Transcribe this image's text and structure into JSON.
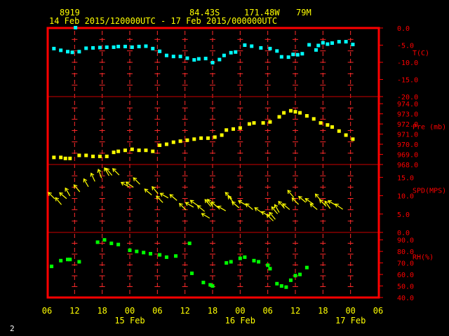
{
  "header": {
    "station": "8919",
    "latitude": "84.43S",
    "longitude": "171.48W",
    "elevation": "79M",
    "date_range": "14 Feb 2015/120000UTC - 17 Feb 2015/000000UTC"
  },
  "page_number": "2",
  "colors": {
    "frame": "#ff0000",
    "panel_line": "#cc0000",
    "tick_text": "#ff0000",
    "axis_text": "#ffff00",
    "temperature": "#00ffff",
    "pressure": "#ffff00",
    "wind": "#ffff00",
    "humidity": "#00ff00"
  },
  "chart_data": {
    "type": "scatter",
    "x_axis": {
      "unit": "hours since 14 Feb 2015 06UTC",
      "range": [
        0,
        72
      ],
      "tick_labels": [
        "06",
        "12",
        "18",
        "00",
        "06",
        "12",
        "18",
        "00",
        "06",
        "12",
        "18",
        "00",
        "06"
      ],
      "date_labels": [
        {
          "label": "15 Feb",
          "hour": 18
        },
        {
          "label": "16 Feb",
          "hour": 42
        },
        {
          "label": "17 Feb",
          "hour": 66
        }
      ]
    },
    "panels": [
      {
        "key": "temperature",
        "label": "T(C)",
        "marker": "square",
        "ylim": [
          -20,
          0
        ],
        "ticks": [
          {
            "v": 0,
            "t": "0.0"
          },
          {
            "v": -5,
            "t": "-5.0"
          },
          {
            "v": -10,
            "t": "-10.0"
          },
          {
            "v": -15,
            "t": "-15.0"
          },
          {
            "v": -20,
            "t": "-20.0"
          }
        ],
        "points": [
          [
            1.5,
            -6.0
          ],
          [
            3,
            -6.5
          ],
          [
            4.5,
            -6.9
          ],
          [
            5.5,
            -7.1
          ],
          [
            6.2,
            0.1
          ],
          [
            7,
            -6.9
          ],
          [
            8.5,
            -5.9
          ],
          [
            10,
            -5.8
          ],
          [
            11.5,
            -5.7
          ],
          [
            13,
            -5.6
          ],
          [
            14.5,
            -5.6
          ],
          [
            15.5,
            -5.4
          ],
          [
            17,
            -5.4
          ],
          [
            18.5,
            -5.6
          ],
          [
            20,
            -5.4
          ],
          [
            21.5,
            -5.3
          ],
          [
            23,
            -6.0
          ],
          [
            24.5,
            -6.8
          ],
          [
            26,
            -8.0
          ],
          [
            27.5,
            -8.3
          ],
          [
            29,
            -8.3
          ],
          [
            30.5,
            -8.8
          ],
          [
            32,
            -9.3
          ],
          [
            33,
            -9.0
          ],
          [
            34.5,
            -8.9
          ],
          [
            36,
            -10.1
          ],
          [
            37.5,
            -9.2
          ],
          [
            38.5,
            -8.0
          ],
          [
            40,
            -7.2
          ],
          [
            41,
            -7.0
          ],
          [
            43,
            -5.0
          ],
          [
            44.5,
            -5.3
          ],
          [
            46.5,
            -5.8
          ],
          [
            48.5,
            -6.0
          ],
          [
            50,
            -6.7
          ],
          [
            51,
            -8.4
          ],
          [
            52.5,
            -8.5
          ],
          [
            53.5,
            -7.7
          ],
          [
            54.5,
            -7.8
          ],
          [
            55.5,
            -7.5
          ],
          [
            57,
            -4.9
          ],
          [
            58.5,
            -6.4
          ],
          [
            59,
            -5.1
          ],
          [
            60,
            -4.3
          ],
          [
            61,
            -4.7
          ],
          [
            62,
            -4.4
          ],
          [
            63.5,
            -4.0
          ],
          [
            65,
            -4.0
          ],
          [
            66.5,
            -4.8
          ]
        ]
      },
      {
        "key": "pressure",
        "label": "Pre (mb)",
        "marker": "square",
        "ylim": [
          968,
          974.7
        ],
        "ticks": [
          {
            "v": 974,
            "t": "974.0"
          },
          {
            "v": 973,
            "t": "973.0"
          },
          {
            "v": 972,
            "t": "972.0"
          },
          {
            "v": 971,
            "t": "971.0"
          },
          {
            "v": 970,
            "t": "970.0"
          },
          {
            "v": 969,
            "t": "969.0"
          },
          {
            "v": 968,
            "t": "968.0"
          }
        ],
        "points": [
          [
            1.5,
            968.7
          ],
          [
            3,
            968.7
          ],
          [
            4,
            968.6
          ],
          [
            5,
            968.6
          ],
          [
            7,
            968.9
          ],
          [
            8.5,
            968.9
          ],
          [
            10,
            968.8
          ],
          [
            11.5,
            968.8
          ],
          [
            13,
            968.8
          ],
          [
            14.5,
            969.2
          ],
          [
            15.5,
            969.3
          ],
          [
            17,
            969.4
          ],
          [
            18.5,
            969.5
          ],
          [
            20,
            969.4
          ],
          [
            21.5,
            969.4
          ],
          [
            23,
            969.3
          ],
          [
            24.5,
            969.9
          ],
          [
            26,
            970.0
          ],
          [
            27.5,
            970.2
          ],
          [
            29,
            970.3
          ],
          [
            30.5,
            970.4
          ],
          [
            32,
            970.5
          ],
          [
            33.5,
            970.6
          ],
          [
            35,
            970.6
          ],
          [
            36.5,
            970.7
          ],
          [
            38,
            970.9
          ],
          [
            39,
            971.4
          ],
          [
            40.5,
            971.5
          ],
          [
            42,
            971.6
          ],
          [
            44,
            972.0
          ],
          [
            45,
            972.1
          ],
          [
            47,
            972.1
          ],
          [
            48.5,
            972.2
          ],
          [
            50.5,
            972.7
          ],
          [
            51.5,
            973.1
          ],
          [
            53,
            973.3
          ],
          [
            54,
            973.2
          ],
          [
            55,
            973.1
          ],
          [
            56.5,
            972.8
          ],
          [
            58,
            972.5
          ],
          [
            59.5,
            972.1
          ],
          [
            61,
            971.9
          ],
          [
            62,
            971.7
          ],
          [
            63.5,
            971.3
          ],
          [
            65,
            970.9
          ],
          [
            66.5,
            970.5
          ]
        ]
      },
      {
        "key": "wind",
        "label": "SPD(MPS)",
        "marker": "arrow",
        "ylim": [
          0,
          18.5
        ],
        "ticks": [
          {
            "v": 15,
            "t": "15.0"
          },
          {
            "v": 10,
            "t": "10.0"
          },
          {
            "v": 5,
            "t": "5.0"
          },
          {
            "v": 0,
            "t": "0.0"
          }
        ],
        "points": [
          [
            1,
            10.0,
            315
          ],
          [
            2.5,
            8.5,
            320
          ],
          [
            3.5,
            10.0,
            310
          ],
          [
            4.5,
            11.0,
            330
          ],
          [
            6.5,
            12.0,
            320
          ],
          [
            8.5,
            13.5,
            330
          ],
          [
            10,
            15.0,
            335
          ],
          [
            11.5,
            16.0,
            340
          ],
          [
            13,
            16.5,
            330
          ],
          [
            13.5,
            16.5,
            320
          ],
          [
            15,
            16.5,
            315
          ],
          [
            17,
            13.0,
            300
          ],
          [
            18,
            13.0,
            305
          ],
          [
            19.5,
            14.0,
            315
          ],
          [
            22,
            11.0,
            310
          ],
          [
            23.5,
            11.5,
            320
          ],
          [
            24.5,
            9.0,
            315
          ],
          [
            25.5,
            10.0,
            300
          ],
          [
            27.5,
            9.5,
            310
          ],
          [
            29.5,
            7.0,
            315
          ],
          [
            31,
            7.5,
            300
          ],
          [
            32,
            8.0,
            305
          ],
          [
            33.5,
            6.5,
            310
          ],
          [
            34.5,
            4.5,
            300
          ],
          [
            35,
            8.0,
            320
          ],
          [
            35.5,
            8.0,
            325
          ],
          [
            36.5,
            7.5,
            310
          ],
          [
            38,
            6.5,
            300
          ],
          [
            39.5,
            10.0,
            315
          ],
          [
            40,
            9.0,
            320
          ],
          [
            41,
            7.5,
            310
          ],
          [
            42.5,
            8.0,
            300
          ],
          [
            44,
            7.0,
            310
          ],
          [
            46,
            6.0,
            305
          ],
          [
            47.5,
            5.0,
            300
          ],
          [
            48.5,
            4.0,
            315
          ],
          [
            49,
            4.5,
            320
          ],
          [
            49.5,
            6.0,
            320
          ],
          [
            50,
            6.5,
            330
          ],
          [
            51,
            7.5,
            320
          ],
          [
            52,
            7.0,
            310
          ],
          [
            53,
            10.5,
            320
          ],
          [
            54,
            8.5,
            315
          ],
          [
            55.5,
            9.0,
            310
          ],
          [
            57,
            8.5,
            305
          ],
          [
            58,
            7.0,
            310
          ],
          [
            59,
            9.5,
            320
          ],
          [
            60,
            8.0,
            315
          ],
          [
            61,
            7.5,
            325
          ],
          [
            62,
            8.0,
            300
          ],
          [
            63.5,
            7.0,
            305
          ]
        ]
      },
      {
        "key": "humidity",
        "label": "RH(%)",
        "marker": "square",
        "ylim": [
          40,
          96.5
        ],
        "ticks": [
          {
            "v": 90,
            "t": "90.0"
          },
          {
            "v": 80,
            "t": "80.0"
          },
          {
            "v": 70,
            "t": "70.0"
          },
          {
            "v": 60,
            "t": "60.0"
          },
          {
            "v": 50,
            "t": "50.0"
          },
          {
            "v": 40,
            "t": "40.0"
          }
        ],
        "points": [
          [
            1,
            67
          ],
          [
            3,
            72
          ],
          [
            4.5,
            73
          ],
          [
            5,
            73
          ],
          [
            7,
            71
          ],
          [
            11,
            88
          ],
          [
            12.5,
            90
          ],
          [
            14,
            87
          ],
          [
            15.5,
            86
          ],
          [
            18,
            81
          ],
          [
            19.5,
            80
          ],
          [
            21,
            79
          ],
          [
            22.5,
            78
          ],
          [
            24.5,
            77
          ],
          [
            26,
            75
          ],
          [
            28,
            76
          ],
          [
            31,
            87
          ],
          [
            31.5,
            61
          ],
          [
            34,
            53
          ],
          [
            35.5,
            51
          ],
          [
            36,
            50
          ],
          [
            39,
            70
          ],
          [
            40,
            71
          ],
          [
            42,
            74
          ],
          [
            43,
            75
          ],
          [
            45,
            72
          ],
          [
            46,
            71
          ],
          [
            48,
            68
          ],
          [
            48.5,
            65
          ],
          [
            50,
            52
          ],
          [
            51,
            50
          ],
          [
            52,
            49
          ],
          [
            53,
            55
          ],
          [
            54,
            59
          ],
          [
            55,
            60
          ],
          [
            56.5,
            66
          ]
        ]
      }
    ]
  }
}
